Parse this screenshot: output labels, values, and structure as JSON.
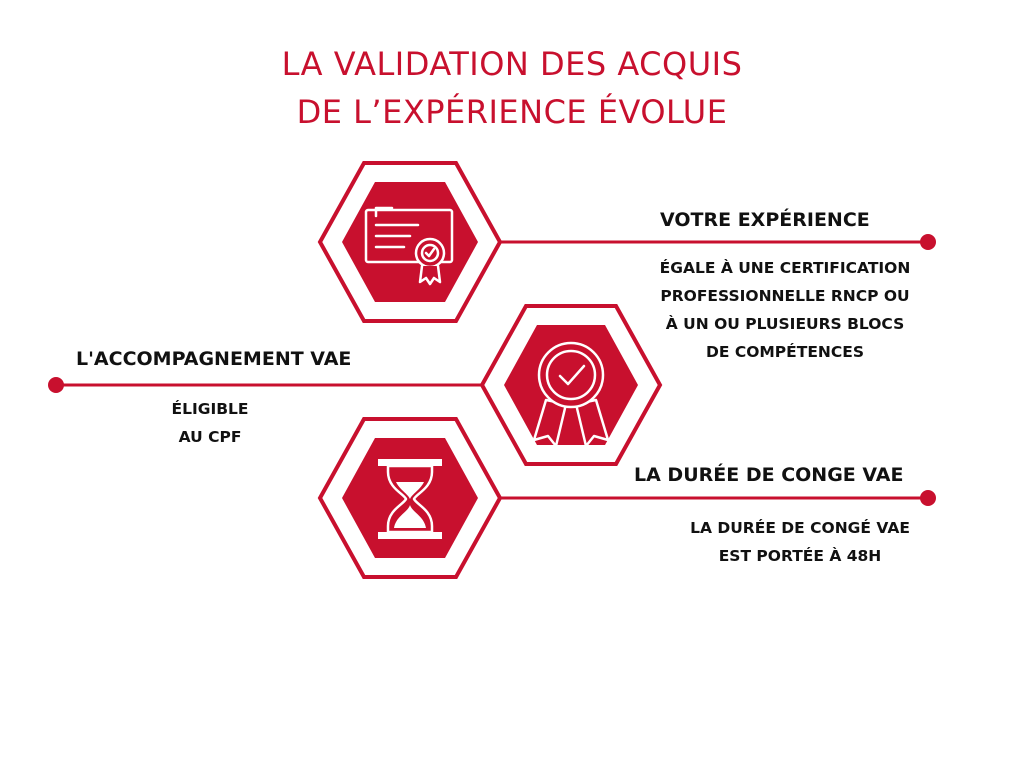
{
  "title": {
    "line1": "LA VALIDATION DES ACQUIS",
    "line2": "DE L’EXPÉRIENCE ÉVOLUE"
  },
  "colors": {
    "accent": "#c8102e",
    "text": "#111111",
    "background": "#ffffff"
  },
  "items": [
    {
      "icon": "certificate-icon",
      "heading": "VOTRE EXPÉRIENCE",
      "lines": [
        "ÉGALE À UNE CERTIFICATION",
        "PROFESSIONNELLE RNCP  OU",
        "À UN OU PLUSIEURS BLOCS",
        "DE COMPÉTENCES"
      ]
    },
    {
      "icon": "award-ribbon-icon",
      "heading": "L'ACCOMPAGNEMENT VAE",
      "lines": [
        "ÉLIGIBLE",
        "AU CPF"
      ]
    },
    {
      "icon": "hourglass-icon",
      "heading": "LA DURÉE DE CONGE VAE",
      "lines": [
        "LA DURÉE DE CONGÉ VAE",
        "EST PORTÉE À 48H"
      ]
    }
  ]
}
